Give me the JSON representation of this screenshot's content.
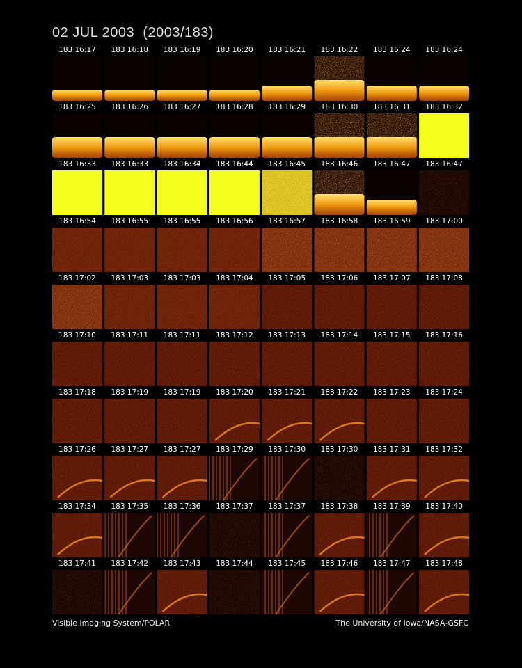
{
  "header": {
    "title": "02 JUL 2003  (2003/183)"
  },
  "frames": {
    "rows": [
      [
        "183 16:17",
        "183 16:18",
        "183 16:19",
        "183 16:20",
        "183 16:21",
        "183 16:22",
        "183 16:24",
        "183 16:24"
      ],
      [
        "183 16:25",
        "183 16:26",
        "183 16:27",
        "183 16:28",
        "183 16:29",
        "183 16:30",
        "183 16:31",
        "183 16:32"
      ],
      [
        "183 16:33",
        "183 16:33",
        "183 16:34",
        "183 16:44",
        "183 16:45",
        "183 16:46",
        "183 16:47",
        "183 16:47"
      ],
      [
        "183 16:54",
        "183 16:55",
        "183 16:55",
        "183 16:56",
        "183 16:57",
        "183 16:58",
        "183 16:59",
        "183 17:00"
      ],
      [
        "183 17:02",
        "183 17:03",
        "183 17:03",
        "183 17:04",
        "183 17:05",
        "183 17:06",
        "183 17:07",
        "183 17:08"
      ],
      [
        "183 17:10",
        "183 17:11",
        "183 17:11",
        "183 17:12",
        "183 17:13",
        "183 17:14",
        "183 17:15",
        "183 17:16"
      ],
      [
        "183 17:18",
        "183 17:19",
        "183 17:19",
        "183 17:20",
        "183 17:21",
        "183 17:22",
        "183 17:23",
        "183 17:24"
      ],
      [
        "183 17:26",
        "183 17:27",
        "183 17:27",
        "183 17:29",
        "183 17:30",
        "183 17:30",
        "183 17:31",
        "183 17:32"
      ],
      [
        "183 17:34",
        "183 17:35",
        "183 17:36",
        "183 17:37",
        "183 17:37",
        "183 17:38",
        "183 17:39",
        "183 17:40"
      ],
      [
        "183 17:41",
        "183 17:42",
        "183 17:43",
        "183 17:44",
        "183 17:45",
        "183 17:46",
        "183 17:47",
        "183 17:48"
      ]
    ]
  },
  "footer": {
    "left": "Visible Imaging System/POLAR",
    "right": "The University of Iowa/NASA-GSFC"
  }
}
